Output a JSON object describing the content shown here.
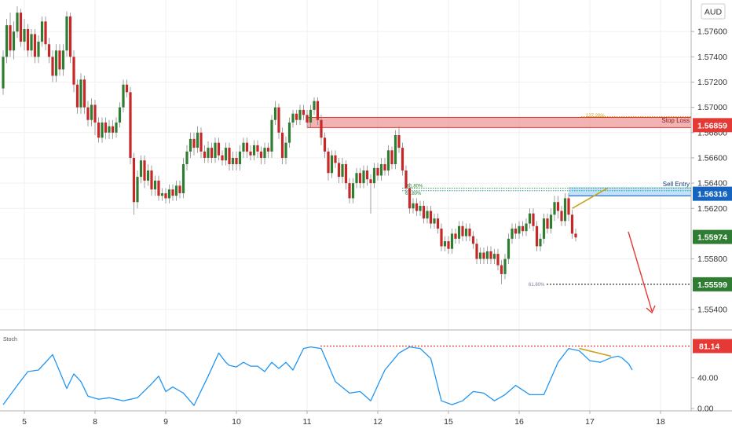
{
  "colors": {
    "up": "#2e7d32",
    "down": "#c62828",
    "wick": "#888888",
    "stoch": "#2196f3",
    "stop_zone": "#ef9a9a",
    "stop_line": "#e53935",
    "entry_zone": "#bbdefb",
    "entry_line": "#1565c0",
    "target": "#2e7d32",
    "divergence": "#c8a21a",
    "arrow": "#e53935",
    "grid": "#f0f0f0"
  },
  "header": {
    "currency": "AUD"
  },
  "chart_data": [
    {
      "type": "candlestick",
      "panel": "price",
      "ylim": [
        1.5525,
        1.5785
      ],
      "xlim": [
        0,
        190
      ],
      "x_tick_labels": [
        {
          "x": 6,
          "label": "5"
        },
        {
          "x": 26,
          "label": "8"
        },
        {
          "x": 46,
          "label": "9"
        },
        {
          "x": 66,
          "label": "10"
        },
        {
          "x": 86,
          "label": "11"
        },
        {
          "x": 106,
          "label": "12"
        },
        {
          "x": 126,
          "label": "15"
        },
        {
          "x": 146,
          "label": "16"
        },
        {
          "x": 166,
          "label": "17"
        },
        {
          "x": 186,
          "label": "18"
        }
      ],
      "y_tick_labels": [
        "1.57600",
        "1.57400",
        "1.57200",
        "1.57000",
        "1.56800",
        "1.56600",
        "1.56400",
        "1.56200",
        "1.55800",
        "1.55400"
      ],
      "price_tags": [
        {
          "name": "stop-loss",
          "value": "1.56859",
          "price": 1.56859
        },
        {
          "name": "sell-entry",
          "value": "1.56316",
          "price": 1.56316
        },
        {
          "name": "current",
          "value": "1.55974",
          "price": 1.55974
        },
        {
          "name": "take-profit",
          "value": "1.55599",
          "price": 1.55599
        }
      ],
      "zones": {
        "stop_loss": {
          "label": "Stop Loss",
          "from": 1.5684,
          "to": 1.5692,
          "x_start": 86
        },
        "sell_entry": {
          "label": "Sell Entry",
          "from": 1.563,
          "to": 1.5637,
          "x_start": 160
        }
      },
      "fib_labels": {
        "stop": "127.20%",
        "entry_1": "61.80%",
        "entry_2": "61.80%",
        "target": "61.80%"
      },
      "candles": [
        [
          1.5715,
          1.574,
          1.571,
          1.5745
        ],
        [
          1.574,
          1.5765,
          1.5735,
          1.577
        ],
        [
          1.5765,
          1.5745,
          1.574,
          1.5775
        ],
        [
          1.5745,
          1.576,
          1.5738,
          1.5768
        ],
        [
          1.576,
          1.5775,
          1.5755,
          1.578
        ],
        [
          1.5775,
          1.5752,
          1.5748,
          1.5778
        ],
        [
          1.5752,
          1.5762,
          1.5745,
          1.577
        ],
        [
          1.5762,
          1.5745,
          1.574,
          1.5766
        ],
        [
          1.5745,
          1.5758,
          1.574,
          1.5762
        ],
        [
          1.5758,
          1.574,
          1.5735,
          1.5762
        ],
        [
          1.574,
          1.5752,
          1.5735,
          1.5757
        ],
        [
          1.5752,
          1.5768,
          1.5748,
          1.5772
        ],
        [
          1.5768,
          1.575,
          1.5745,
          1.5772
        ],
        [
          1.575,
          1.574,
          1.5735,
          1.5755
        ],
        [
          1.574,
          1.5725,
          1.572,
          1.5745
        ],
        [
          1.5725,
          1.5745,
          1.572,
          1.575
        ],
        [
          1.5745,
          1.573,
          1.5725,
          1.575
        ],
        [
          1.573,
          1.5745,
          1.5725,
          1.575
        ],
        [
          1.5745,
          1.5772,
          1.574,
          1.5776
        ],
        [
          1.5772,
          1.574,
          1.5735,
          1.5775
        ],
        [
          1.574,
          1.5718,
          1.5712,
          1.5745
        ],
        [
          1.5718,
          1.57,
          1.5695,
          1.5722
        ],
        [
          1.57,
          1.5722,
          1.5695,
          1.5727
        ],
        [
          1.5722,
          1.57,
          1.5695,
          1.5725
        ],
        [
          1.57,
          1.569,
          1.5685,
          1.5705
        ],
        [
          1.569,
          1.5702,
          1.5685,
          1.5707
        ],
        [
          1.5702,
          1.5688,
          1.5678,
          1.5706
        ],
        [
          1.5688,
          1.5676,
          1.5672,
          1.5692
        ],
        [
          1.5676,
          1.5688,
          1.5672,
          1.5692
        ],
        [
          1.5688,
          1.568,
          1.5675,
          1.5692
        ],
        [
          1.568,
          1.5685,
          1.5675,
          1.569
        ],
        [
          1.5685,
          1.568,
          1.5675,
          1.569
        ],
        [
          1.568,
          1.5688,
          1.5676,
          1.5692
        ],
        [
          1.5688,
          1.57,
          1.5684,
          1.5704
        ],
        [
          1.57,
          1.5718,
          1.5696,
          1.5722
        ],
        [
          1.5718,
          1.5712,
          1.5708,
          1.5722
        ],
        [
          1.5712,
          1.566,
          1.5655,
          1.5716
        ],
        [
          1.566,
          1.5625,
          1.5615,
          1.5664
        ],
        [
          1.5625,
          1.5645,
          1.562,
          1.565
        ],
        [
          1.5645,
          1.5658,
          1.564,
          1.5662
        ],
        [
          1.5658,
          1.5642,
          1.5636,
          1.5662
        ],
        [
          1.5642,
          1.565,
          1.5638,
          1.5655
        ],
        [
          1.565,
          1.5635,
          1.563,
          1.5654
        ],
        [
          1.5635,
          1.5642,
          1.563,
          1.5646
        ],
        [
          1.5642,
          1.563,
          1.5626,
          1.5646
        ],
        [
          1.563,
          1.5632,
          1.5626,
          1.5636
        ],
        [
          1.5632,
          1.5628,
          1.5624,
          1.5636
        ],
        [
          1.5628,
          1.5635,
          1.5624,
          1.5639
        ],
        [
          1.5635,
          1.563,
          1.5626,
          1.5639
        ],
        [
          1.563,
          1.5638,
          1.5626,
          1.5642
        ],
        [
          1.5638,
          1.5632,
          1.5628,
          1.5642
        ],
        [
          1.5632,
          1.5655,
          1.5628,
          1.566
        ],
        [
          1.5655,
          1.5665,
          1.565,
          1.567
        ],
        [
          1.5665,
          1.5675,
          1.566,
          1.568
        ],
        [
          1.5675,
          1.5668,
          1.5662,
          1.568
        ],
        [
          1.5668,
          1.568,
          1.5664,
          1.5685
        ],
        [
          1.568,
          1.5665,
          1.566,
          1.5684
        ],
        [
          1.5665,
          1.566,
          1.5656,
          1.567
        ],
        [
          1.566,
          1.5668,
          1.5656,
          1.5673
        ],
        [
          1.5668,
          1.566,
          1.5656,
          1.5672
        ],
        [
          1.566,
          1.5672,
          1.5656,
          1.5676
        ],
        [
          1.5672,
          1.5662,
          1.5658,
          1.5676
        ],
        [
          1.5662,
          1.5658,
          1.5654,
          1.5666
        ],
        [
          1.5658,
          1.5668,
          1.5654,
          1.5672
        ],
        [
          1.5668,
          1.5655,
          1.565,
          1.5672
        ],
        [
          1.5655,
          1.566,
          1.565,
          1.5665
        ],
        [
          1.566,
          1.5655,
          1.565,
          1.5665
        ],
        [
          1.5655,
          1.5665,
          1.565,
          1.567
        ],
        [
          1.5665,
          1.5672,
          1.566,
          1.5676
        ],
        [
          1.5672,
          1.5665,
          1.566,
          1.5676
        ],
        [
          1.5665,
          1.5662,
          1.5658,
          1.567
        ],
        [
          1.5662,
          1.567,
          1.5658,
          1.5674
        ],
        [
          1.567,
          1.5665,
          1.566,
          1.5674
        ],
        [
          1.5665,
          1.566,
          1.5655,
          1.5669
        ],
        [
          1.566,
          1.5668,
          1.5655,
          1.5672
        ],
        [
          1.5668,
          1.5665,
          1.566,
          1.5672
        ],
        [
          1.5665,
          1.569,
          1.566,
          1.5694
        ],
        [
          1.569,
          1.57,
          1.5686,
          1.5705
        ],
        [
          1.57,
          1.568,
          1.5675,
          1.5703
        ],
        [
          1.568,
          1.566,
          1.5655,
          1.5684
        ],
        [
          1.566,
          1.5672,
          1.5655,
          1.5677
        ],
        [
          1.5672,
          1.5688,
          1.5668,
          1.5692
        ],
        [
          1.5688,
          1.5695,
          1.5684,
          1.5698
        ],
        [
          1.5695,
          1.569,
          1.5686,
          1.5698
        ],
        [
          1.569,
          1.5698,
          1.5686,
          1.5702
        ],
        [
          1.5698,
          1.5694,
          1.569,
          1.5702
        ],
        [
          1.5694,
          1.5688,
          1.5684,
          1.5698
        ],
        [
          1.5688,
          1.5698,
          1.5684,
          1.5702
        ],
        [
          1.5698,
          1.5705,
          1.5694,
          1.5708
        ],
        [
          1.5705,
          1.569,
          1.5686,
          1.5708
        ],
        [
          1.569,
          1.5676,
          1.567,
          1.5694
        ],
        [
          1.5676,
          1.5665,
          1.566,
          1.568
        ],
        [
          1.5665,
          1.5648,
          1.5642,
          1.5668
        ],
        [
          1.5648,
          1.5662,
          1.5644,
          1.5666
        ],
        [
          1.5662,
          1.5656,
          1.5652,
          1.5666
        ],
        [
          1.5656,
          1.5645,
          1.564,
          1.566
        ],
        [
          1.5645,
          1.5655,
          1.564,
          1.566
        ],
        [
          1.5655,
          1.564,
          1.5635,
          1.5658
        ],
        [
          1.564,
          1.5628,
          1.5624,
          1.5644
        ],
        [
          1.5628,
          1.564,
          1.5624,
          1.5644
        ],
        [
          1.564,
          1.5648,
          1.5636,
          1.5652
        ],
        [
          1.5648,
          1.564,
          1.5636,
          1.5652
        ],
        [
          1.564,
          1.565,
          1.5636,
          1.5654
        ],
        [
          1.565,
          1.5643,
          1.5638,
          1.5654
        ],
        [
          1.5643,
          1.564,
          1.5616,
          1.5647
        ],
        [
          1.564,
          1.5652,
          1.5636,
          1.5656
        ],
        [
          1.5652,
          1.5646,
          1.5642,
          1.5656
        ],
        [
          1.5646,
          1.5655,
          1.5642,
          1.566
        ],
        [
          1.5655,
          1.565,
          1.5646,
          1.566
        ],
        [
          1.565,
          1.5666,
          1.5646,
          1.567
        ],
        [
          1.5666,
          1.5655,
          1.5651,
          1.5669
        ],
        [
          1.5655,
          1.5678,
          1.5651,
          1.5682
        ],
        [
          1.5678,
          1.5668,
          1.5664,
          1.5685
        ],
        [
          1.5668,
          1.565,
          1.5646,
          1.5672
        ],
        [
          1.565,
          1.5636,
          1.5632,
          1.5654
        ],
        [
          1.5636,
          1.562,
          1.5616,
          1.564
        ],
        [
          1.562,
          1.5624,
          1.5616,
          1.5628
        ],
        [
          1.5624,
          1.5618,
          1.5614,
          1.5628
        ],
        [
          1.5618,
          1.5622,
          1.5614,
          1.5626
        ],
        [
          1.5622,
          1.5612,
          1.5608,
          1.5626
        ],
        [
          1.5612,
          1.5618,
          1.5608,
          1.5622
        ],
        [
          1.5618,
          1.5608,
          1.5604,
          1.5622
        ],
        [
          1.5608,
          1.5612,
          1.5604,
          1.5616
        ],
        [
          1.5612,
          1.5604,
          1.56,
          1.5616
        ],
        [
          1.5604,
          1.559,
          1.5586,
          1.5608
        ],
        [
          1.559,
          1.5594,
          1.5586,
          1.5598
        ],
        [
          1.5594,
          1.5588,
          1.5584,
          1.5598
        ],
        [
          1.5588,
          1.56,
          1.5584,
          1.5604
        ],
        [
          1.56,
          1.5596,
          1.5592,
          1.5604
        ],
        [
          1.5596,
          1.5606,
          1.5592,
          1.561
        ],
        [
          1.5606,
          1.5598,
          1.5594,
          1.561
        ],
        [
          1.5598,
          1.5604,
          1.5594,
          1.5608
        ],
        [
          1.5604,
          1.5598,
          1.5594,
          1.5608
        ],
        [
          1.5598,
          1.5592,
          1.5588,
          1.5602
        ],
        [
          1.5592,
          1.558,
          1.5576,
          1.5596
        ],
        [
          1.558,
          1.5585,
          1.5576,
          1.5589
        ],
        [
          1.5585,
          1.558,
          1.5576,
          1.5589
        ],
        [
          1.558,
          1.5586,
          1.5576,
          1.559
        ],
        [
          1.5586,
          1.558,
          1.5576,
          1.559
        ],
        [
          1.558,
          1.5584,
          1.5576,
          1.5588
        ],
        [
          1.5584,
          1.5575,
          1.5571,
          1.5588
        ],
        [
          1.5575,
          1.5568,
          1.556,
          1.5579
        ],
        [
          1.5568,
          1.558,
          1.5564,
          1.5584
        ],
        [
          1.558,
          1.5596,
          1.5576,
          1.56
        ],
        [
          1.5596,
          1.5604,
          1.5592,
          1.5608
        ],
        [
          1.5604,
          1.56,
          1.5596,
          1.5608
        ],
        [
          1.56,
          1.5606,
          1.5596,
          1.561
        ],
        [
          1.5606,
          1.5602,
          1.5598,
          1.561
        ],
        [
          1.5602,
          1.5608,
          1.5598,
          1.5612
        ],
        [
          1.5608,
          1.5616,
          1.5604,
          1.562
        ],
        [
          1.5616,
          1.5606,
          1.5602,
          1.562
        ],
        [
          1.5606,
          1.559,
          1.5586,
          1.561
        ],
        [
          1.559,
          1.5596,
          1.5586,
          1.56
        ],
        [
          1.5596,
          1.5612,
          1.5592,
          1.5616
        ],
        [
          1.5612,
          1.5604,
          1.56,
          1.5616
        ],
        [
          1.5604,
          1.5615,
          1.56,
          1.562
        ],
        [
          1.5615,
          1.5625,
          1.561,
          1.563
        ],
        [
          1.5625,
          1.5618,
          1.5612,
          1.563
        ],
        [
          1.5618,
          1.561,
          1.5606,
          1.5622
        ],
        [
          1.561,
          1.5628,
          1.5606,
          1.5632
        ],
        [
          1.5628,
          1.5615,
          1.561,
          1.5632
        ],
        [
          1.5615,
          1.56,
          1.5596,
          1.5619
        ],
        [
          1.56,
          1.5597,
          1.5594,
          1.5604
        ]
      ]
    },
    {
      "type": "line",
      "panel": "oscillator",
      "name": "Stoch",
      "ylim": [
        0,
        100
      ],
      "y_tick_labels": [
        "40.00",
        "0.00"
      ],
      "level_tag": {
        "value": "81.14",
        "level": 81.14
      },
      "x": [
        0,
        4,
        7,
        10,
        14,
        18,
        20,
        22,
        24,
        27,
        30,
        34,
        38,
        42,
        44,
        46,
        48,
        51,
        54,
        58,
        61,
        63,
        64,
        66,
        68,
        70,
        72,
        74,
        76,
        78,
        80,
        82,
        85,
        87,
        90,
        94,
        98,
        101,
        104,
        108,
        112,
        115,
        118,
        121,
        124,
        127,
        130,
        133,
        136,
        139,
        142,
        145,
        149,
        153,
        157,
        160,
        163,
        166,
        169,
        170,
        172,
        174,
        175,
        177,
        178
      ],
      "values": [
        5,
        30,
        48,
        50,
        70,
        26,
        45,
        35,
        16,
        12,
        14,
        10,
        14,
        32,
        42,
        22,
        28,
        20,
        4,
        42,
        72,
        60,
        56,
        54,
        60,
        55,
        55,
        48,
        60,
        52,
        60,
        50,
        78,
        80,
        78,
        35,
        20,
        22,
        10,
        50,
        72,
        80,
        78,
        65,
        10,
        5,
        10,
        22,
        20,
        10,
        18,
        30,
        18,
        18,
        60,
        78,
        75,
        62,
        60,
        62,
        66,
        68,
        66,
        58,
        50
      ]
    }
  ]
}
